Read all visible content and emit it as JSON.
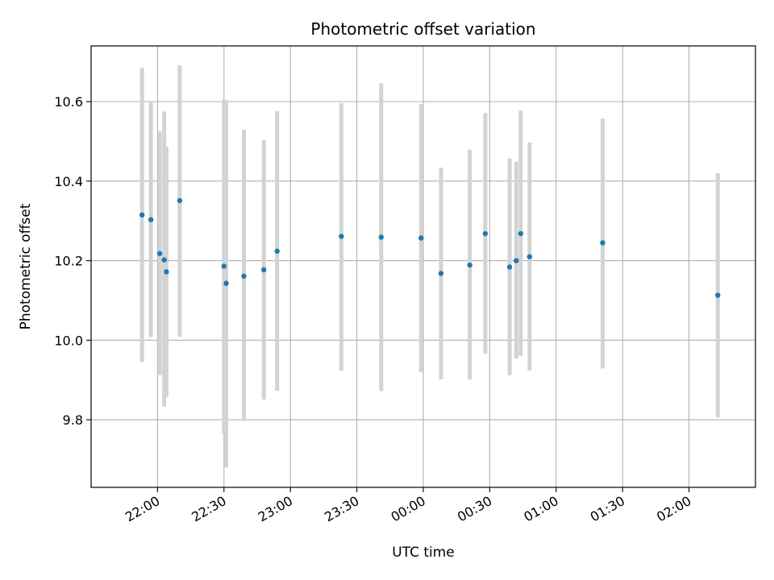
{
  "chart_data": {
    "type": "scatter",
    "title": "Photometric offset variation",
    "xlabel": "UTC time",
    "ylabel": "Photometric offset",
    "grid": true,
    "x_unit": "UTC time (HH:MM, starting 21:30)",
    "x_ticks": [
      "22:00",
      "22:30",
      "23:00",
      "23:30",
      "00:00",
      "00:30",
      "01:00",
      "01:30",
      "02:00"
    ],
    "y_ticks": [
      "9.8",
      "10.0",
      "10.2",
      "10.4",
      "10.6"
    ],
    "xlim": [
      "21:30",
      "02:30"
    ],
    "ylim": [
      9.63,
      10.74
    ],
    "colors": {
      "point": "#1f77b4",
      "errorbar": "#d3d3d3",
      "grid": "#b0b0b0"
    },
    "points": [
      {
        "x": "21:53",
        "y": 10.315,
        "ylow": 9.945,
        "yhigh": 10.685
      },
      {
        "x": "21:57",
        "y": 10.303,
        "ylow": 10.008,
        "yhigh": 10.601
      },
      {
        "x": "22:01",
        "y": 10.218,
        "ylow": 9.912,
        "yhigh": 10.525
      },
      {
        "x": "22:03",
        "y": 10.202,
        "ylow": 9.833,
        "yhigh": 10.575
      },
      {
        "x": "22:04",
        "y": 10.172,
        "ylow": 9.858,
        "yhigh": 10.486
      },
      {
        "x": "22:10",
        "y": 10.351,
        "ylow": 10.009,
        "yhigh": 10.691
      },
      {
        "x": "22:30",
        "y": 10.186,
        "ylow": 9.766,
        "yhigh": 10.605
      },
      {
        "x": "22:31",
        "y": 10.143,
        "ylow": 9.68,
        "yhigh": 10.603
      },
      {
        "x": "22:39",
        "y": 10.161,
        "ylow": 9.797,
        "yhigh": 10.529
      },
      {
        "x": "22:48",
        "y": 10.177,
        "ylow": 9.851,
        "yhigh": 10.503
      },
      {
        "x": "22:54",
        "y": 10.224,
        "ylow": 9.873,
        "yhigh": 10.576
      },
      {
        "x": "23:23",
        "y": 10.261,
        "ylow": 9.923,
        "yhigh": 10.596
      },
      {
        "x": "23:41",
        "y": 10.259,
        "ylow": 9.872,
        "yhigh": 10.646
      },
      {
        "x": "23:59",
        "y": 10.257,
        "ylow": 9.92,
        "yhigh": 10.594
      },
      {
        "x": "00:08",
        "y": 10.168,
        "ylow": 9.902,
        "yhigh": 10.434
      },
      {
        "x": "00:21",
        "y": 10.189,
        "ylow": 9.901,
        "yhigh": 10.479
      },
      {
        "x": "00:28",
        "y": 10.268,
        "ylow": 9.966,
        "yhigh": 10.571
      },
      {
        "x": "00:39",
        "y": 10.184,
        "ylow": 9.912,
        "yhigh": 10.457
      },
      {
        "x": "00:42",
        "y": 10.2,
        "ylow": 9.954,
        "yhigh": 10.449
      },
      {
        "x": "00:44",
        "y": 10.268,
        "ylow": 9.961,
        "yhigh": 10.577
      },
      {
        "x": "00:48",
        "y": 10.21,
        "ylow": 9.924,
        "yhigh": 10.497
      },
      {
        "x": "01:21",
        "y": 10.245,
        "ylow": 9.929,
        "yhigh": 10.557
      },
      {
        "x": "02:13",
        "y": 10.113,
        "ylow": 9.806,
        "yhigh": 10.42
      }
    ]
  }
}
